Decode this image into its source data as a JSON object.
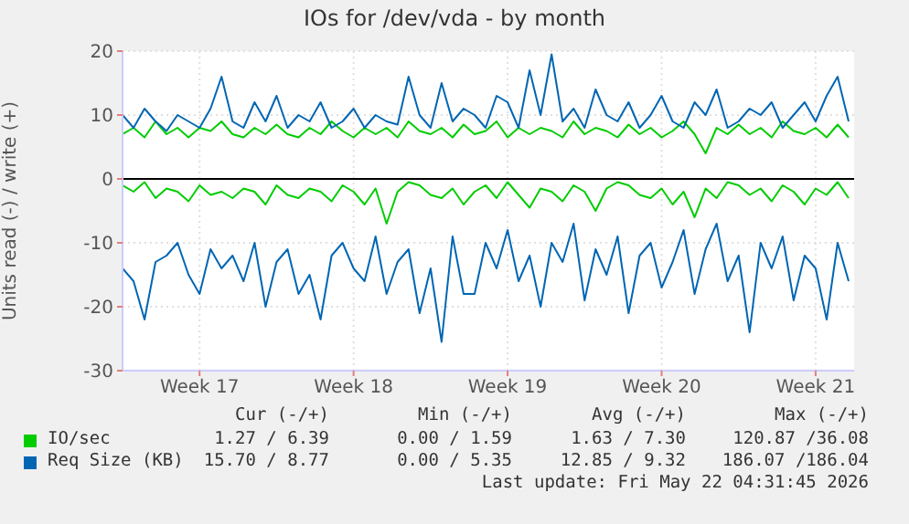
{
  "chart_data": {
    "type": "line",
    "title": "IOs for /dev/vda - by month",
    "ylabel": "Units read (-) / write (+)",
    "categories": [
      null,
      null,
      null,
      null,
      null,
      null,
      null,
      "Week 17",
      null,
      null,
      null,
      null,
      null,
      null,
      null,
      null,
      null,
      null,
      null,
      null,
      null,
      "Week 18",
      null,
      null,
      null,
      null,
      null,
      null,
      null,
      null,
      null,
      null,
      null,
      null,
      null,
      "Week 19",
      null,
      null,
      null,
      null,
      null,
      null,
      null,
      null,
      null,
      null,
      null,
      null,
      null,
      "Week 20",
      null,
      null,
      null,
      null,
      null,
      null,
      null,
      null,
      null,
      null,
      null,
      null,
      null,
      "Week 21",
      null,
      null,
      null
    ],
    "ylim": [
      -30,
      20
    ],
    "yticks": [
      -30,
      -20,
      -10,
      0,
      10,
      20
    ],
    "grid": true,
    "legend": "bottom",
    "ref_lines": [
      {
        "axis": "y",
        "value": 0,
        "color": "#000000"
      }
    ],
    "series": [
      {
        "name": "IO/sec",
        "color": "#00cc00",
        "values": [
          7,
          8,
          6.5,
          9,
          7,
          8,
          6.5,
          8,
          7.5,
          9,
          7,
          6.5,
          8,
          7,
          8.5,
          7,
          6.5,
          8,
          7,
          9,
          7.5,
          6.5,
          8,
          7,
          8,
          6.5,
          9,
          7.5,
          7,
          8,
          6.5,
          8.5,
          7,
          7.5,
          9,
          6.5,
          8,
          7,
          8,
          7.5,
          6.5,
          9,
          7,
          8,
          7.5,
          6.5,
          8.5,
          7,
          8,
          6.5,
          7.5,
          9,
          7,
          4,
          8,
          7,
          8.5,
          7,
          8,
          6.5,
          9,
          7.5,
          7,
          8,
          6.5,
          8.5,
          6.5
        ]
      },
      {
        "color": "#00cc00",
        "values": [
          -1,
          -2,
          -0.5,
          -3,
          -1.5,
          -2,
          -3.5,
          -1,
          -2.5,
          -2,
          -3,
          -1.5,
          -2,
          -4,
          -1,
          -2.5,
          -3,
          -1.5,
          -2,
          -3.5,
          -1,
          -2,
          -4,
          -1.5,
          -7,
          -2,
          -0.5,
          -1,
          -2.5,
          -3,
          -1.5,
          -4,
          -2,
          -1,
          -3,
          -0.5,
          -2.5,
          -4.5,
          -1.5,
          -2,
          -3.5,
          -1,
          -2,
          -5,
          -1.5,
          -0.5,
          -1,
          -2.5,
          -3,
          -1.5,
          -4,
          -2,
          -6,
          -1.5,
          -3,
          -0.5,
          -1,
          -2.5,
          -1.5,
          -3.5,
          -1,
          -2,
          -4,
          -1.5,
          -2.5,
          -0.5,
          -3
        ]
      },
      {
        "name": "Req Size (KB)",
        "color": "#0066b3",
        "values": [
          10,
          8,
          11,
          9,
          7.5,
          10,
          9,
          8,
          11,
          16,
          9,
          8,
          12,
          9,
          13,
          8,
          10,
          9,
          12,
          8,
          9,
          11,
          8,
          10,
          9,
          8.5,
          16,
          10,
          8,
          15,
          9,
          11,
          10,
          8,
          13,
          12,
          8,
          17,
          10,
          19.5,
          9,
          11,
          8,
          14,
          10,
          9,
          12,
          8,
          10,
          13,
          9,
          8,
          12,
          10,
          14,
          8,
          9,
          11,
          10,
          12,
          8,
          10,
          12,
          9,
          13,
          16,
          9
        ]
      },
      {
        "color": "#0066b3",
        "values": [
          -14,
          -16,
          -22,
          -13,
          -12,
          -10,
          -15,
          -18,
          -11,
          -14,
          -12,
          -16,
          -10,
          -20,
          -13,
          -11,
          -18,
          -15,
          -22,
          -12,
          -10,
          -14,
          -16,
          -9,
          -18,
          -13,
          -11,
          -21,
          -14,
          -25.5,
          -9,
          -18,
          -18,
          -10,
          -14,
          -8,
          -16,
          -12,
          -20,
          -10,
          -13,
          -7,
          -19,
          -11,
          -15,
          -9,
          -21,
          -12,
          -10,
          -17,
          -13,
          -8,
          -18,
          -11,
          -7,
          -16,
          -12,
          -24,
          -10,
          -14,
          -9,
          -19,
          -12,
          -14,
          -22,
          -10,
          -16
        ]
      }
    ],
    "annotations": [
      "Cur (-/+)",
      "Min (-/+)",
      "Avg (-/+)",
      "Max (-/+)",
      "1.27 / 6.39",
      "0.00 / 1.59",
      "1.63 / 7.30",
      "120.87 /36.08",
      "15.70 / 8.77",
      "0.00 / 5.35",
      "12.85 / 9.32",
      "186.07 /186.04",
      "Last update: Fri May 22 04:31:45 2026"
    ]
  }
}
